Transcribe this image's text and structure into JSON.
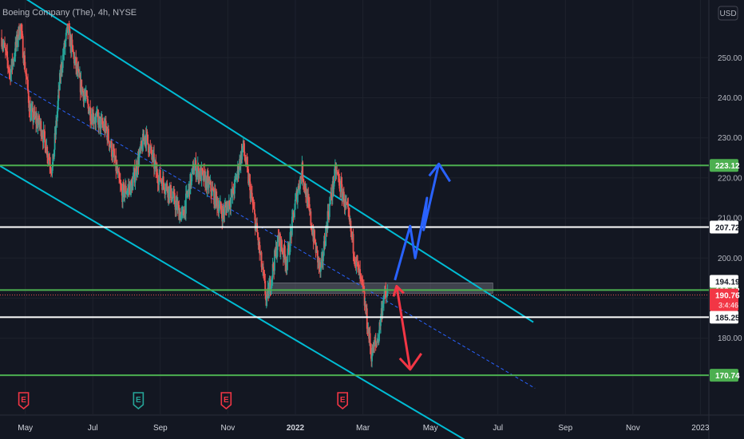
{
  "header": {
    "title": "Boeing Company (The), 4h, NYSE"
  },
  "currency_button": "USD",
  "chart_data": {
    "type": "candlestick",
    "title": "Boeing Company (The), 4h, NYSE",
    "y_axis": {
      "ticks": [
        180,
        190,
        200,
        210,
        220,
        230,
        240,
        250
      ],
      "tick_labels": [
        "180.00",
        "190.00",
        "200.00",
        "210.00",
        "220.00",
        "230.00",
        "240.00",
        "250.00"
      ],
      "range": [
        165,
        265
      ],
      "position": "right"
    },
    "x_axis": {
      "labels": [
        "May",
        "Jul",
        "Sep",
        "Nov",
        "2022",
        "Mar",
        "May",
        "Jul",
        "Sep",
        "Nov",
        "2023"
      ],
      "label_months": [
        4.35,
        6.35,
        8.35,
        10.35,
        12.35,
        14.35,
        16.35,
        18.35,
        20.35,
        22.35,
        24.35
      ],
      "month_range": [
        3.6,
        24.6
      ]
    },
    "price_path": [
      {
        "m": 3.65,
        "p": 255
      },
      {
        "m": 3.9,
        "p": 246
      },
      {
        "m": 4.2,
        "p": 258
      },
      {
        "m": 4.5,
        "p": 236
      },
      {
        "m": 4.8,
        "p": 233
      },
      {
        "m": 5.15,
        "p": 222
      },
      {
        "m": 5.4,
        "p": 247
      },
      {
        "m": 5.6,
        "p": 257
      },
      {
        "m": 5.95,
        "p": 244
      },
      {
        "m": 6.3,
        "p": 236
      },
      {
        "m": 6.75,
        "p": 232
      },
      {
        "m": 7.0,
        "p": 224
      },
      {
        "m": 7.2,
        "p": 216
      },
      {
        "m": 7.5,
        "p": 218
      },
      {
        "m": 7.9,
        "p": 231
      },
      {
        "m": 8.25,
        "p": 221
      },
      {
        "m": 8.6,
        "p": 217
      },
      {
        "m": 9.0,
        "p": 210
      },
      {
        "m": 9.35,
        "p": 223
      },
      {
        "m": 9.8,
        "p": 218
      },
      {
        "m": 10.2,
        "p": 211
      },
      {
        "m": 10.5,
        "p": 216
      },
      {
        "m": 10.8,
        "p": 228
      },
      {
        "m": 11.2,
        "p": 207
      },
      {
        "m": 11.5,
        "p": 189
      },
      {
        "m": 11.85,
        "p": 205
      },
      {
        "m": 12.1,
        "p": 199
      },
      {
        "m": 12.35,
        "p": 214
      },
      {
        "m": 12.55,
        "p": 222
      },
      {
        "m": 12.85,
        "p": 207
      },
      {
        "m": 13.1,
        "p": 196
      },
      {
        "m": 13.3,
        "p": 210
      },
      {
        "m": 13.55,
        "p": 222
      },
      {
        "m": 13.9,
        "p": 211
      },
      {
        "m": 14.15,
        "p": 199
      },
      {
        "m": 14.35,
        "p": 192
      },
      {
        "m": 14.6,
        "p": 176
      },
      {
        "m": 14.8,
        "p": 180
      },
      {
        "m": 14.95,
        "p": 190
      },
      {
        "m": 15.1,
        "p": 190.76
      }
    ],
    "horizontal_levels": [
      {
        "value": 223.12,
        "label": "223.12",
        "color": "#4caf50",
        "badge_color": "#4caf50"
      },
      {
        "value": 207.72,
        "label": "207.72",
        "color": "#ffffff",
        "badge_color": "#ffffff"
      },
      {
        "value": 192.02,
        "label": "192.02",
        "color": "#4caf50",
        "badge_color": "#4caf50"
      },
      {
        "value": 185.25,
        "label": "185.25",
        "color": "#ffffff",
        "badge_color": "#ffffff"
      },
      {
        "value": 170.74,
        "label": "170.74",
        "color": "#4caf50",
        "badge_color": "#4caf50"
      }
    ],
    "extra_price_labels": [
      {
        "value": 194.19,
        "label": "194.19",
        "style": "white"
      },
      {
        "value": 190.76,
        "label": "190.76",
        "sub": "3:4:46",
        "style": "red"
      }
    ],
    "current_price": 190.76,
    "channel": {
      "upper": {
        "start": {
          "m": 3.75,
          "p": 268
        },
        "end": {
          "m": 19.4,
          "p": 184
        }
      },
      "lower": {
        "start": {
          "m": 3.6,
          "p": 223
        },
        "end": {
          "m": 17.5,
          "p": 154
        }
      },
      "mid": {
        "start": {
          "m": 3.6,
          "p": 246
        },
        "end": {
          "m": 19.45,
          "p": 167.5
        }
      }
    },
    "zone": {
      "m0": 11.55,
      "m1": 18.2,
      "p0": 191.2,
      "p1": 193.8
    },
    "arrows": {
      "blue": [
        {
          "m": 15.3,
          "p": 194.5
        },
        {
          "m": 15.75,
          "p": 208
        },
        {
          "m": 15.9,
          "p": 200
        },
        {
          "m": 16.25,
          "p": 215
        },
        {
          "m": 16.15,
          "p": 207
        },
        {
          "m": 16.6,
          "p": 223.5
        }
      ],
      "blue_head_side": "up",
      "red": [
        {
          "m": 15.35,
          "p": 193
        },
        {
          "m": 15.75,
          "p": 172.2
        }
      ],
      "colors": {
        "blue": "#2962ff",
        "red": "#f23645"
      }
    },
    "earnings_markers": [
      {
        "m": 4.3,
        "letter": "E",
        "color": "#f23645"
      },
      {
        "m": 7.7,
        "letter": "E",
        "color": "#26a69a"
      },
      {
        "m": 10.3,
        "letter": "E",
        "color": "#f23645"
      },
      {
        "m": 13.75,
        "letter": "E",
        "color": "#f23645"
      }
    ],
    "colors": {
      "up": "#26a69a",
      "down": "#ef5350",
      "channel": "#00bcd4",
      "background": "#131722",
      "grid": "#1e222d"
    },
    "grid": true
  }
}
